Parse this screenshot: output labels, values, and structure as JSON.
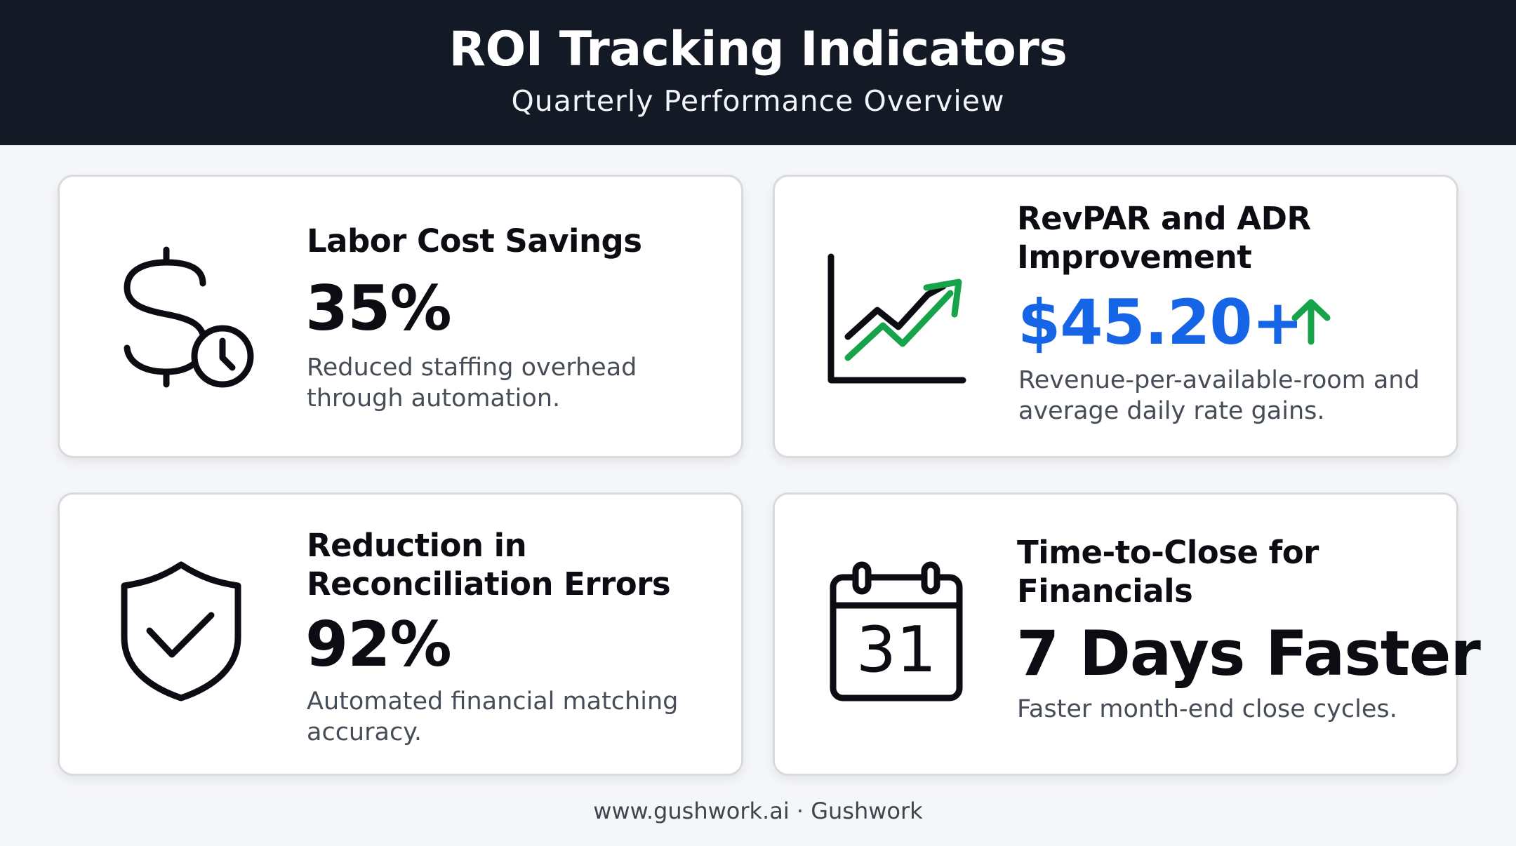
{
  "header": {
    "title": "ROI Tracking Indicators",
    "subtitle": "Quarterly Performance Overview"
  },
  "cards": [
    {
      "icon": "dollar-clock-icon",
      "title": "Labor Cost Savings",
      "value": "35%",
      "description": "Reduced staffing overhead through automation."
    },
    {
      "icon": "trend-chart-icon",
      "title": "RevPAR and ADR Improvement",
      "value": "$45.20+",
      "value_color": "#1565e6",
      "trend_icon": "arrow-up-icon",
      "trend_color": "#16a34a",
      "description": "Revenue-per-available-room and average daily rate gains."
    },
    {
      "icon": "shield-check-icon",
      "title": "Reduction in Reconciliation Errors",
      "value": "92%",
      "description": "Automated financial matching accuracy."
    },
    {
      "icon": "calendar-icon",
      "calendar_number": "31",
      "title": "Time-to-Close for Financials",
      "value": "7 Days Faster",
      "description": "Faster month-end close cycles."
    }
  ],
  "footer": {
    "text": "www.gushwork.ai · Gushwork"
  },
  "colors": {
    "header_bg": "#131a26",
    "accent_blue": "#1565e6",
    "accent_green": "#16a34a"
  }
}
